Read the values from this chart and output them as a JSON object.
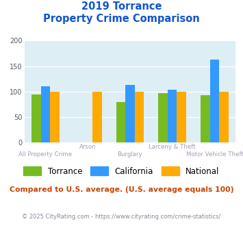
{
  "title_line1": "2019 Torrance",
  "title_line2": "Property Crime Comparison",
  "categories": [
    "All Property Crime",
    "Arson",
    "Burglary",
    "Larceny & Theft",
    "Motor Vehicle Theft"
  ],
  "torrance": [
    94,
    0,
    80,
    97,
    93
  ],
  "california": [
    110,
    0,
    113,
    103,
    163
  ],
  "national": [
    100,
    100,
    100,
    100,
    100
  ],
  "colors": {
    "torrance": "#77bb22",
    "california": "#3399ff",
    "national": "#ffaa00"
  },
  "ylim": [
    0,
    200
  ],
  "yticks": [
    0,
    50,
    100,
    150,
    200
  ],
  "bg_color": "#ddeef5",
  "title_color": "#1155cc",
  "xlabel_color": "#aa99bb",
  "legend_labels": [
    "Torrance",
    "California",
    "National"
  ],
  "footnote1": "Compared to U.S. average. (U.S. average equals 100)",
  "footnote2": "© 2025 CityRating.com - https://www.cityrating.com/crime-statistics/",
  "footnote1_color": "#cc4400",
  "footnote2_color": "#888899",
  "bar_width": 0.22
}
